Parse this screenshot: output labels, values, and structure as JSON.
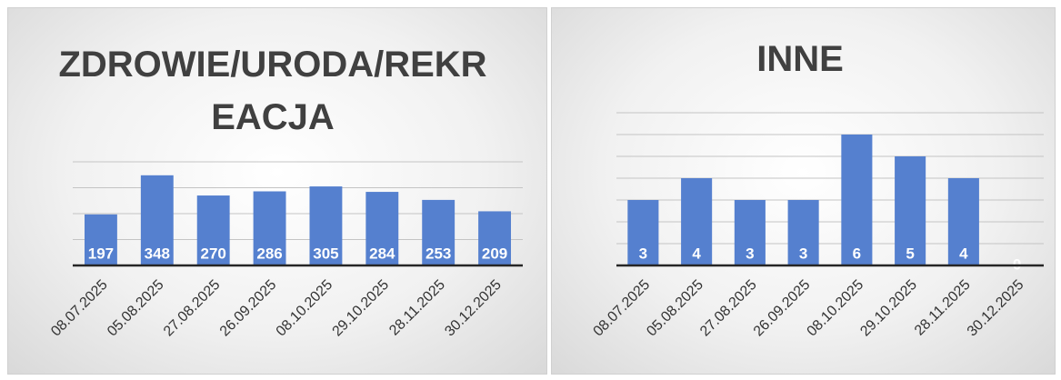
{
  "chart_data": [
    {
      "type": "bar",
      "title": "ZDROWIE/URODA/REKREACJA",
      "categories": [
        "08.07.2025",
        "05.08.2025",
        "27.08.2025",
        "26.09.2025",
        "08.10.2025",
        "29.10.2025",
        "28.11.2025",
        "30.12.2025"
      ],
      "values": [
        197,
        348,
        270,
        286,
        305,
        284,
        253,
        209
      ],
      "color": "#5580cf",
      "ylim": [
        0,
        400
      ],
      "yticks": [
        0,
        100,
        200,
        300,
        400
      ],
      "grid": true
    },
    {
      "type": "bar",
      "title": "INNE",
      "categories": [
        "08.07.2025",
        "05.08.2025",
        "27.08.2025",
        "26.09.2025",
        "08.10.2025",
        "29.10.2025",
        "28.11.2025",
        "30.12.2025"
      ],
      "values": [
        3,
        4,
        3,
        3,
        6,
        5,
        4,
        0
      ],
      "color": "#5580cf",
      "ylim": [
        0,
        7
      ],
      "yticks": [
        0,
        1,
        2,
        3,
        4,
        5,
        6,
        7
      ],
      "grid": true
    }
  ]
}
